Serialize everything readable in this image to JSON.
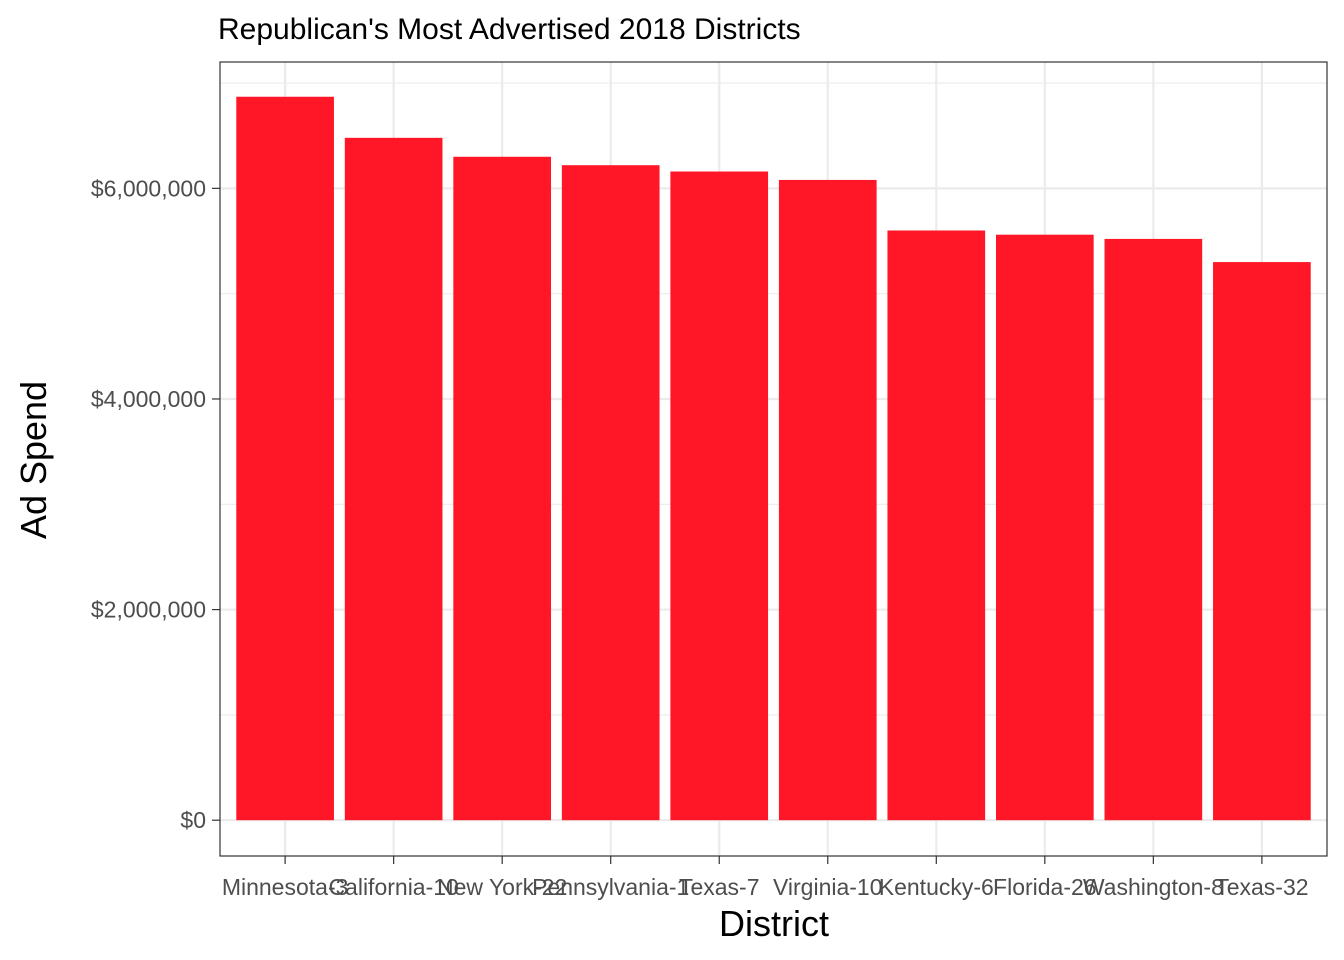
{
  "chart_data": {
    "type": "bar",
    "title": "Republican's Most Advertised 2018 Districts",
    "xlabel": "District",
    "ylabel": "Ad Spend",
    "categories": [
      "Minnesota-3",
      "California-10",
      "New York-22",
      "Pennsylvania-1",
      "Texas-7",
      "Virginia-10",
      "Kentucky-6",
      "Florida-26",
      "Washington-8",
      "Texas-32"
    ],
    "values": [
      6870000,
      6480000,
      6300000,
      6220000,
      6160000,
      6080000,
      5600000,
      5560000,
      5520000,
      5300000
    ],
    "y_ticks": [
      0,
      2000000,
      4000000,
      6000000
    ],
    "y_tick_labels": [
      "$0",
      "$2,000,000",
      "$4,000,000",
      "$6,000,000"
    ],
    "ylim": [
      -340000,
      7200000
    ],
    "bar_color": "#ff1727",
    "grid": true,
    "legend": "none"
  }
}
